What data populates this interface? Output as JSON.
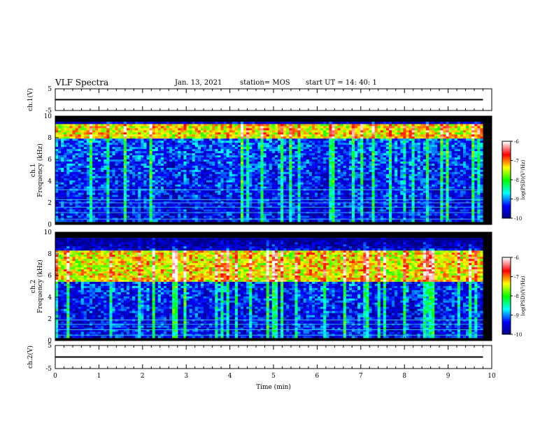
{
  "header": {
    "title": "VLF Spectra",
    "date": "Jan. 13, 2021",
    "station": "station= MOS",
    "start_ut": "start  UT  =    14: 40: 1"
  },
  "chart_data": [
    {
      "type": "line",
      "panel": "ch1-waveform",
      "ylabel": "ch.1(V)",
      "ylim": [
        -5,
        5
      ],
      "yticks": [
        "5",
        "-5"
      ],
      "xlim": [
        0,
        10
      ],
      "series": [
        {
          "x": [
            0,
            9.8
          ],
          "values": [
            0,
            0
          ]
        }
      ]
    },
    {
      "type": "heatmap",
      "panel": "ch1-spectrogram",
      "ylabel_lines": [
        "ch.1",
        "Frequency (kHz)"
      ],
      "ylim": [
        0,
        10
      ],
      "yticks": [
        "0",
        "2",
        "4",
        "6",
        "8",
        "10"
      ],
      "xlim": [
        0,
        10
      ],
      "data_end_min": 9.8,
      "emission_band_khz": [
        8.0,
        9.3
      ],
      "emission_band_log_psd": -7.5,
      "background_log_psd": -9.6,
      "line_frequencies_khz": [
        0.5,
        1.1,
        1.6,
        2.0,
        2.3,
        3.2
      ]
    },
    {
      "type": "heatmap",
      "panel": "ch2-spectrogram",
      "ylabel_lines": [
        "ch.2",
        "Frequency (kHz)"
      ],
      "ylim": [
        0,
        10
      ],
      "yticks": [
        "0",
        "2",
        "4",
        "6",
        "8",
        "10"
      ],
      "xlim": [
        0,
        10
      ],
      "data_end_min": 9.8,
      "emission_band_khz": [
        5.5,
        8.5
      ],
      "emission_band_log_psd": -7.5,
      "background_log_psd": -9.6,
      "line_frequencies_khz": [
        0.5,
        1.0,
        1.5,
        1.9
      ]
    },
    {
      "type": "line",
      "panel": "ch2-waveform",
      "ylabel": "ch.2(V)",
      "ylim": [
        -5,
        5
      ],
      "yticks": [
        "5",
        "-5"
      ],
      "xlim": [
        0,
        10
      ],
      "xlabel": "Time (min)",
      "xticks": [
        "0",
        "1",
        "2",
        "3",
        "4",
        "5",
        "6",
        "7",
        "8",
        "9",
        "10"
      ],
      "series": [
        {
          "x": [
            0,
            9.8
          ],
          "values": [
            0,
            0
          ]
        }
      ]
    }
  ],
  "colorbar": {
    "label": "log(PSD)(V²/Hz)",
    "range": [
      -10,
      -6
    ],
    "ticks": [
      "-6",
      "-7",
      "-8",
      "-9",
      "-10"
    ],
    "colors": [
      "#000080",
      "#0000ff",
      "#00ffff",
      "#00ff00",
      "#ffff00",
      "#ff0000",
      "#ffffff"
    ]
  }
}
